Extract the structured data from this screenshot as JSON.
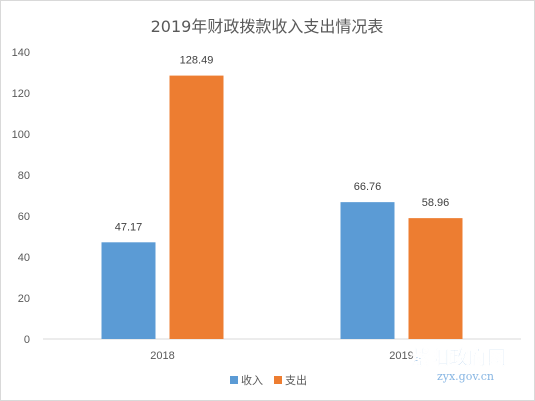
{
  "chart_data": {
    "type": "bar",
    "title": "2019年财政拨款收入支出情况表",
    "categories": [
      "2018",
      "2019"
    ],
    "series": [
      {
        "name": "收入",
        "values": [
          47.17,
          66.76
        ],
        "color": "#5b9bd5"
      },
      {
        "name": "支出",
        "values": [
          128.49,
          58.96
        ],
        "color": "#ed7d31"
      }
    ],
    "data_labels": [
      [
        "47.17",
        "66.76"
      ],
      [
        "128.49",
        "58.96"
      ]
    ],
    "yticks": [
      "0",
      "20",
      "40",
      "60",
      "80",
      "100",
      "120",
      "140"
    ],
    "ylim": [
      0,
      140
    ],
    "grid": false,
    "legend": "bottom"
  },
  "watermark": {
    "text": "紫阳政府网",
    "url": "zyx.gov.cn",
    "color": "#6aa2d8"
  }
}
